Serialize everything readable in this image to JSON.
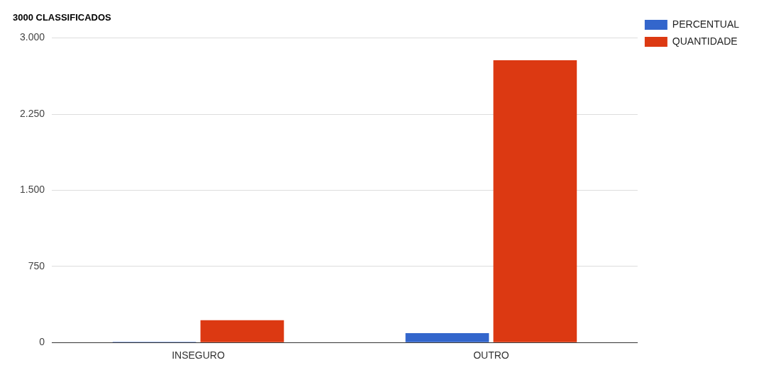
{
  "chart_data": {
    "type": "bar",
    "title": "3000 CLASSIFICADOS",
    "categories": [
      "INSEGURO",
      "OUTRO"
    ],
    "series": [
      {
        "name": "PERCENTUAL",
        "color": "#3366cc",
        "values": [
          7,
          93
        ]
      },
      {
        "name": "QUANTIDADE",
        "color": "#dc3912",
        "values": [
          220,
          2780
        ]
      }
    ],
    "ylim": [
      0,
      3000
    ],
    "yticks": [
      {
        "value": 0,
        "label": "0"
      },
      {
        "value": 750,
        "label": "750"
      },
      {
        "value": 1500,
        "label": "1.500"
      },
      {
        "value": 2250,
        "label": "2.250"
      },
      {
        "value": 3000,
        "label": "3.000"
      }
    ],
    "grid": "y",
    "legend": "top right"
  }
}
